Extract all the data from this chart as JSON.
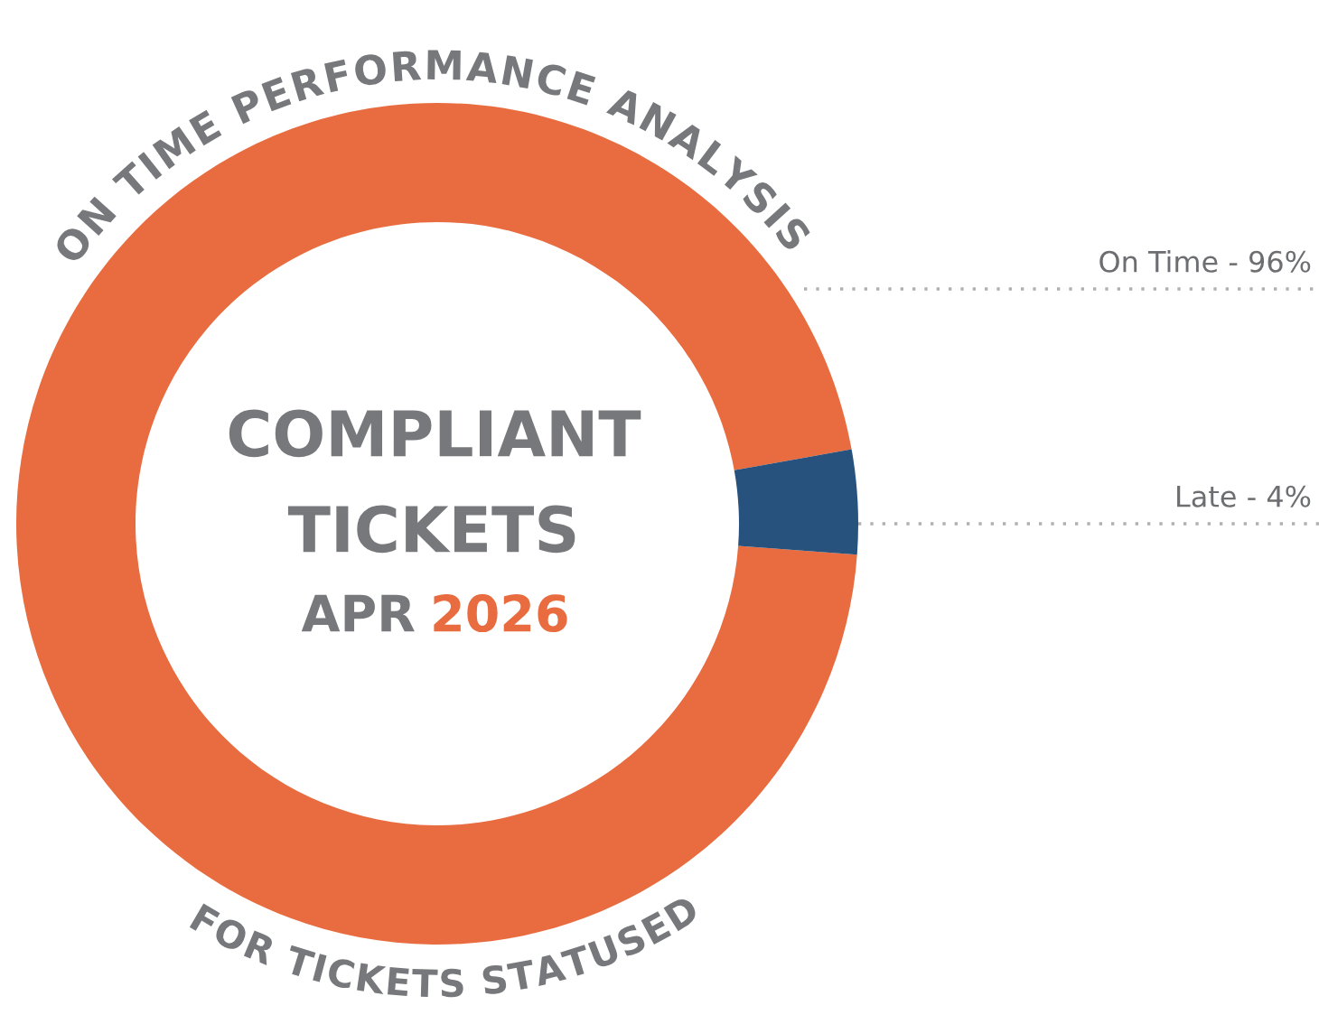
{
  "chart_data": {
    "type": "donut",
    "title": "ON TIME PERFORMANCE ANALYSIS",
    "subtitle": "FOR TICKETS STATUSED",
    "categories": [
      "On Time - 96%",
      "Late - 4%"
    ],
    "values": [
      96,
      4
    ],
    "colors": [
      "#e86c3f",
      "#27527e"
    ],
    "annotations": [
      "COMPLIANT",
      "TICKETS",
      "APR",
      "2026"
    ]
  }
}
